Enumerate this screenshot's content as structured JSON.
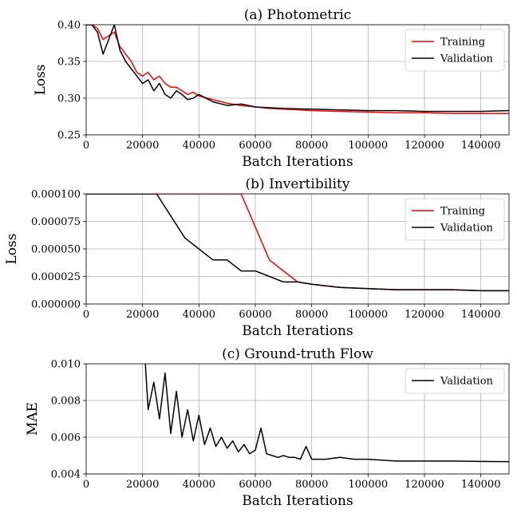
{
  "chart_data": [
    {
      "type": "line",
      "title": "(a) Photometric",
      "xlabel": "Batch Iterations",
      "ylabel": "Loss",
      "xlim": [
        0,
        150000
      ],
      "ylim": [
        0.25,
        0.4
      ],
      "xticks": [
        "0",
        "20000",
        "40000",
        "60000",
        "80000",
        "100000",
        "120000",
        "140000"
      ],
      "yticks": [
        "0.25",
        "0.30",
        "0.35",
        "0.40"
      ],
      "grid": true,
      "legend": "top-right",
      "series": [
        {
          "name": "Training",
          "color": "#ff0000",
          "x": [
            0,
            2000,
            4000,
            6000,
            8000,
            10000,
            12000,
            14000,
            16000,
            18000,
            20000,
            22000,
            24000,
            26000,
            28000,
            30000,
            32000,
            34000,
            36000,
            38000,
            40000,
            45000,
            50000,
            55000,
            60000,
            65000,
            70000,
            80000,
            90000,
            100000,
            110000,
            120000,
            130000,
            140000,
            150000
          ],
          "y": [
            0.4,
            0.4,
            0.395,
            0.38,
            0.385,
            0.39,
            0.37,
            0.36,
            0.35,
            0.335,
            0.33,
            0.335,
            0.325,
            0.33,
            0.32,
            0.315,
            0.315,
            0.31,
            0.305,
            0.308,
            0.303,
            0.298,
            0.293,
            0.29,
            0.288,
            0.286,
            0.285,
            0.283,
            0.282,
            0.281,
            0.28,
            0.28,
            0.279,
            0.279,
            0.279
          ]
        },
        {
          "name": "Validation",
          "color": "#000000",
          "x": [
            0,
            2000,
            4000,
            6000,
            8000,
            10000,
            12000,
            14000,
            16000,
            18000,
            20000,
            22000,
            24000,
            26000,
            28000,
            30000,
            32000,
            34000,
            36000,
            38000,
            40000,
            45000,
            50000,
            55000,
            60000,
            65000,
            70000,
            80000,
            90000,
            100000,
            110000,
            120000,
            130000,
            140000,
            150000
          ],
          "y": [
            0.4,
            0.4,
            0.39,
            0.36,
            0.38,
            0.4,
            0.365,
            0.35,
            0.34,
            0.33,
            0.32,
            0.325,
            0.31,
            0.32,
            0.305,
            0.3,
            0.31,
            0.305,
            0.298,
            0.3,
            0.305,
            0.295,
            0.29,
            0.292,
            0.288,
            0.287,
            0.286,
            0.285,
            0.284,
            0.283,
            0.283,
            0.282,
            0.282,
            0.282,
            0.283
          ]
        }
      ]
    },
    {
      "type": "line",
      "title": "(b) Invertibility",
      "xlabel": "Batch Iterations",
      "ylabel": "Loss",
      "xlim": [
        0,
        150000
      ],
      "ylim": [
        0.0,
        0.0001
      ],
      "xticks": [
        "0",
        "20000",
        "40000",
        "60000",
        "80000",
        "100000",
        "120000",
        "140000"
      ],
      "yticks": [
        "0.000000",
        "0.000025",
        "0.000050",
        "0.000075",
        "0.000100"
      ],
      "grid": true,
      "legend": "top-right",
      "series": [
        {
          "name": "Training",
          "color": "#ff0000",
          "x": [
            0,
            5000,
            10000,
            15000,
            20000,
            25000,
            30000,
            35000,
            40000,
            45000,
            50000,
            55000,
            60000,
            65000,
            70000,
            75000,
            80000,
            90000,
            100000,
            110000,
            120000,
            130000,
            140000,
            150000
          ],
          "y": [
            0.0001,
            0.0001,
            0.0001,
            0.0001,
            0.0001,
            0.0001,
            0.0001,
            0.0001,
            0.0001,
            0.0001,
            0.0001,
            0.0001,
            7e-05,
            4e-05,
            3e-05,
            2e-05,
            1.8e-05,
            1.5e-05,
            1.4e-05,
            1.3e-05,
            1.3e-05,
            1.3e-05,
            1.2e-05,
            1.2e-05
          ]
        },
        {
          "name": "Validation",
          "color": "#000000",
          "x": [
            0,
            5000,
            10000,
            15000,
            20000,
            25000,
            30000,
            35000,
            40000,
            45000,
            50000,
            55000,
            60000,
            65000,
            70000,
            75000,
            80000,
            90000,
            100000,
            110000,
            120000,
            130000,
            140000,
            150000
          ],
          "y": [
            0.0001,
            0.0001,
            0.0001,
            0.0001,
            0.0001,
            0.0001,
            8e-05,
            6e-05,
            5e-05,
            4e-05,
            4e-05,
            3e-05,
            3e-05,
            2.5e-05,
            2e-05,
            2e-05,
            1.8e-05,
            1.5e-05,
            1.4e-05,
            1.3e-05,
            1.3e-05,
            1.3e-05,
            1.2e-05,
            1.2e-05
          ]
        }
      ]
    },
    {
      "type": "line",
      "title": "(c) Ground-truth Flow",
      "xlabel": "Batch Iterations",
      "ylabel": "MAE",
      "xlim": [
        0,
        150000
      ],
      "ylim": [
        0.004,
        0.01
      ],
      "xticks": [
        "0",
        "20000",
        "40000",
        "60000",
        "80000",
        "100000",
        "120000",
        "140000"
      ],
      "yticks": [
        "0.004",
        "0.006",
        "0.008",
        "0.010"
      ],
      "grid": true,
      "legend": "top-right",
      "series": [
        {
          "name": "Validation",
          "color": "#000000",
          "x": [
            21000,
            22000,
            24000,
            26000,
            28000,
            30000,
            32000,
            34000,
            36000,
            38000,
            40000,
            42000,
            44000,
            46000,
            48000,
            50000,
            52000,
            54000,
            56000,
            58000,
            60000,
            62000,
            64000,
            66000,
            68000,
            70000,
            72000,
            74000,
            76000,
            78000,
            80000,
            85000,
            90000,
            95000,
            100000,
            110000,
            120000,
            130000,
            140000,
            150000
          ],
          "y": [
            0.01,
            0.0075,
            0.009,
            0.007,
            0.0095,
            0.0062,
            0.0085,
            0.006,
            0.0075,
            0.0058,
            0.0072,
            0.0056,
            0.0065,
            0.0055,
            0.006,
            0.0054,
            0.0058,
            0.0052,
            0.0056,
            0.0051,
            0.0053,
            0.0065,
            0.0051,
            0.005,
            0.0049,
            0.005,
            0.0049,
            0.0049,
            0.0048,
            0.0055,
            0.0048,
            0.0048,
            0.0049,
            0.0048,
            0.0048,
            0.0047,
            0.0047,
            0.0047,
            0.00468,
            0.00467
          ]
        }
      ]
    }
  ]
}
